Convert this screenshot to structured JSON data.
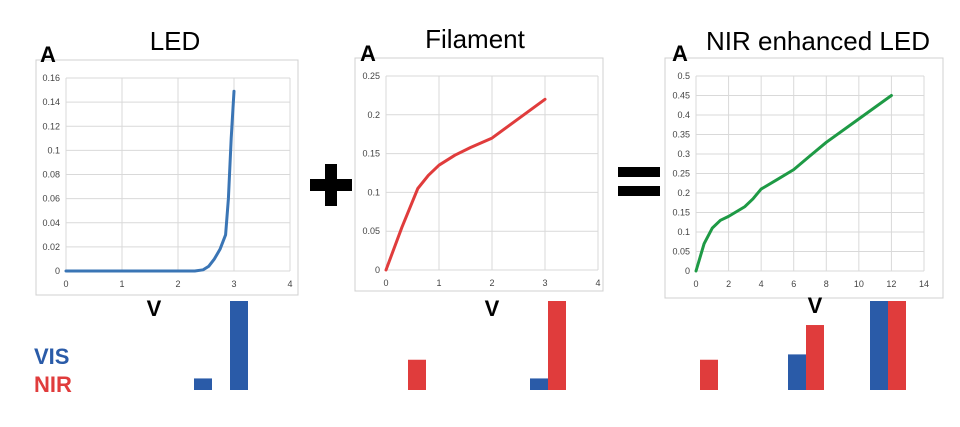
{
  "colors": {
    "vis": "#2a5ba8",
    "nir": "#e03c3c",
    "led": "#3a75b5",
    "filament": "#e03c3c",
    "nir_led": "#1e9a45"
  },
  "operators": {
    "plus": "+",
    "equals": "="
  },
  "legend": {
    "vis": "VIS",
    "nir": "NIR"
  },
  "chart_data": [
    {
      "type": "line",
      "title": "LED",
      "ylabel": "A",
      "xlabel": "V",
      "xlim": [
        0,
        4
      ],
      "ylim": [
        0,
        0.16
      ],
      "xticks": [
        "0",
        "1",
        "2",
        "3",
        "4"
      ],
      "yticks": [
        "0",
        "0.02",
        "0.04",
        "0.06",
        "0.08",
        "0.1",
        "0.12",
        "0.14",
        "0.16"
      ],
      "grid": true,
      "series": [
        {
          "color": "#3a75b5",
          "x": [
            0,
            1,
            2,
            2.3,
            2.45,
            2.55,
            2.65,
            2.75,
            2.85,
            2.9,
            2.95,
            3.0
          ],
          "y": [
            0,
            0,
            0,
            0,
            0.001,
            0.004,
            0.01,
            0.018,
            0.03,
            0.06,
            0.11,
            0.149
          ]
        }
      ]
    },
    {
      "type": "line",
      "title": "Filament",
      "ylabel": "A",
      "xlabel": "V",
      "xlim": [
        0,
        4
      ],
      "ylim": [
        0,
        0.25
      ],
      "xticks": [
        "0",
        "1",
        "2",
        "3",
        "4"
      ],
      "yticks": [
        "0",
        "0.05",
        "0.1",
        "0.15",
        "0.2",
        "0.25"
      ],
      "grid": true,
      "series": [
        {
          "color": "#e03c3c",
          "x": [
            0,
            0.3,
            0.6,
            0.8,
            1.0,
            1.3,
            1.6,
            2.0,
            2.3,
            2.6,
            3.0
          ],
          "y": [
            0,
            0.055,
            0.105,
            0.122,
            0.135,
            0.148,
            0.158,
            0.17,
            0.185,
            0.2,
            0.22
          ]
        }
      ]
    },
    {
      "type": "line",
      "title": "NIR enhanced LED",
      "ylabel": "A",
      "xlabel": "V",
      "xlim": [
        0,
        14
      ],
      "ylim": [
        0,
        0.5
      ],
      "xticks": [
        "0",
        "2",
        "4",
        "6",
        "8",
        "10",
        "12",
        "14"
      ],
      "yticks": [
        "0",
        "0.05",
        "0.1",
        "0.15",
        "0.2",
        "0.25",
        "0.3",
        "0.35",
        "0.4",
        "0.45",
        "0.5"
      ],
      "grid": true,
      "series": [
        {
          "color": "#1e9a45",
          "x": [
            0,
            0.5,
            1,
            1.5,
            2,
            3,
            3.5,
            4,
            5,
            6,
            7,
            8,
            10,
            12
          ],
          "y": [
            0,
            0.07,
            0.11,
            0.13,
            0.14,
            0.165,
            0.185,
            0.21,
            0.235,
            0.26,
            0.295,
            0.33,
            0.39,
            0.45
          ]
        }
      ]
    },
    {
      "type": "bar",
      "title": "",
      "groups": [
        {
          "bars": [
            {
              "series": "VIS",
              "value": 0.13
            }
          ]
        },
        {
          "bars": [
            {
              "series": "VIS",
              "value": 1.0
            }
          ]
        },
        {
          "bars": [
            {
              "series": "NIR",
              "value": 0.34
            }
          ]
        },
        {
          "bars": [
            {
              "series": "VIS",
              "value": 0.13
            },
            {
              "series": "NIR",
              "value": 1.0
            }
          ]
        },
        {
          "bars": [
            {
              "series": "NIR",
              "value": 0.34
            }
          ]
        },
        {
          "bars": [
            {
              "series": "VIS",
              "value": 0.4
            },
            {
              "series": "NIR",
              "value": 0.73
            }
          ]
        },
        {
          "bars": [
            {
              "series": "VIS",
              "value": 1.0
            },
            {
              "series": "NIR",
              "value": 1.0
            }
          ]
        }
      ]
    }
  ]
}
